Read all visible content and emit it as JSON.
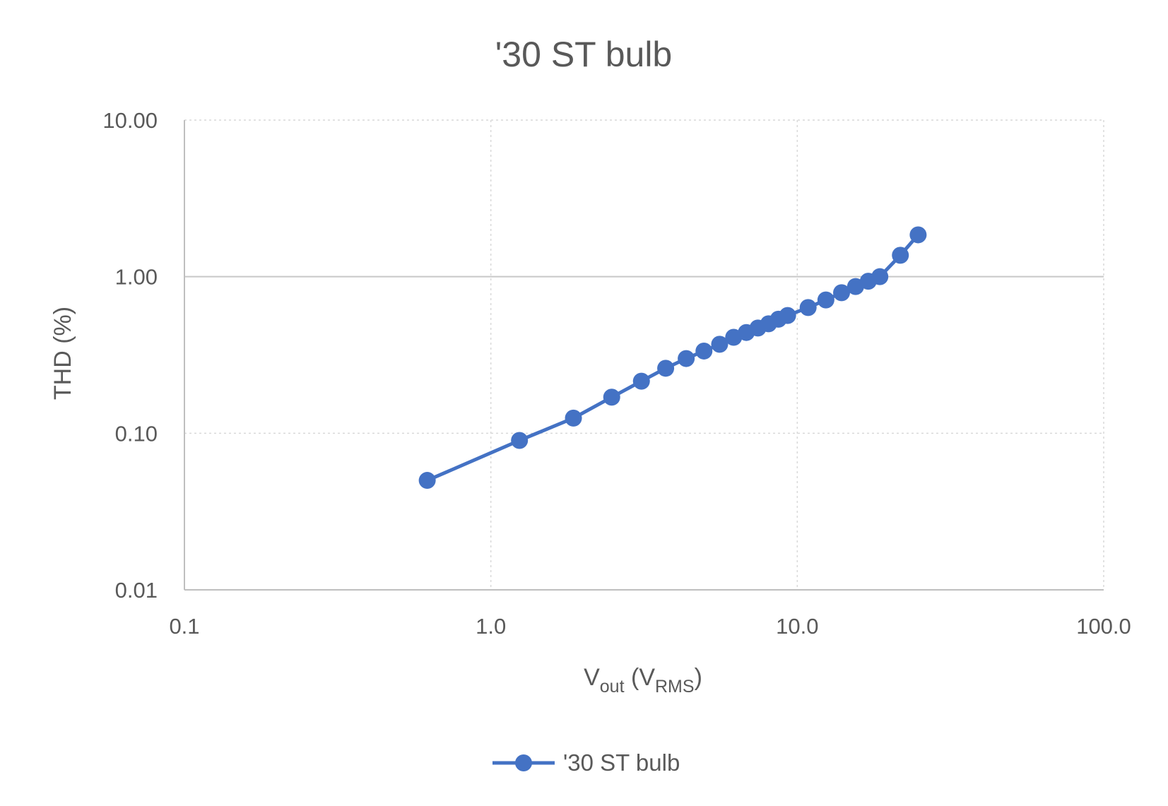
{
  "chart_data": {
    "type": "line",
    "title": "'30 ST bulb",
    "xlabel": {
      "main": "V",
      "sub1": "out",
      "mid": " (V",
      "sub2": "RMS",
      "end": ")"
    },
    "ylabel": "THD (%)",
    "x_scale": "log",
    "y_scale": "log",
    "xlim": [
      0.1,
      100
    ],
    "ylim": [
      0.01,
      10
    ],
    "x_ticks": [
      {
        "value": 0.1,
        "label": "0.1"
      },
      {
        "value": 1,
        "label": "1.0"
      },
      {
        "value": 10,
        "label": "10.0"
      },
      {
        "value": 100,
        "label": "100.0"
      }
    ],
    "y_ticks": [
      {
        "value": 0.01,
        "label": "0.01"
      },
      {
        "value": 0.1,
        "label": "0.10"
      },
      {
        "value": 1,
        "label": "1.00"
      },
      {
        "value": 10,
        "label": "10.00"
      }
    ],
    "grid": true,
    "legend_position": "bottom",
    "series": [
      {
        "name": "'30 ST bulb",
        "color": "#4472C4",
        "marker": "circle",
        "x": [
          0.62,
          1.24,
          1.86,
          2.48,
          3.1,
          3.72,
          4.34,
          4.96,
          5.58,
          6.2,
          6.82,
          7.44,
          8.06,
          8.68,
          9.3,
          10.85,
          12.4,
          13.95,
          15.5,
          17.05,
          18.6,
          21.7,
          24.8
        ],
        "y": [
          0.05,
          0.09,
          0.125,
          0.17,
          0.215,
          0.26,
          0.3,
          0.335,
          0.37,
          0.41,
          0.44,
          0.47,
          0.5,
          0.535,
          0.565,
          0.635,
          0.71,
          0.79,
          0.865,
          0.935,
          1.0,
          1.37,
          1.85
        ]
      }
    ]
  }
}
